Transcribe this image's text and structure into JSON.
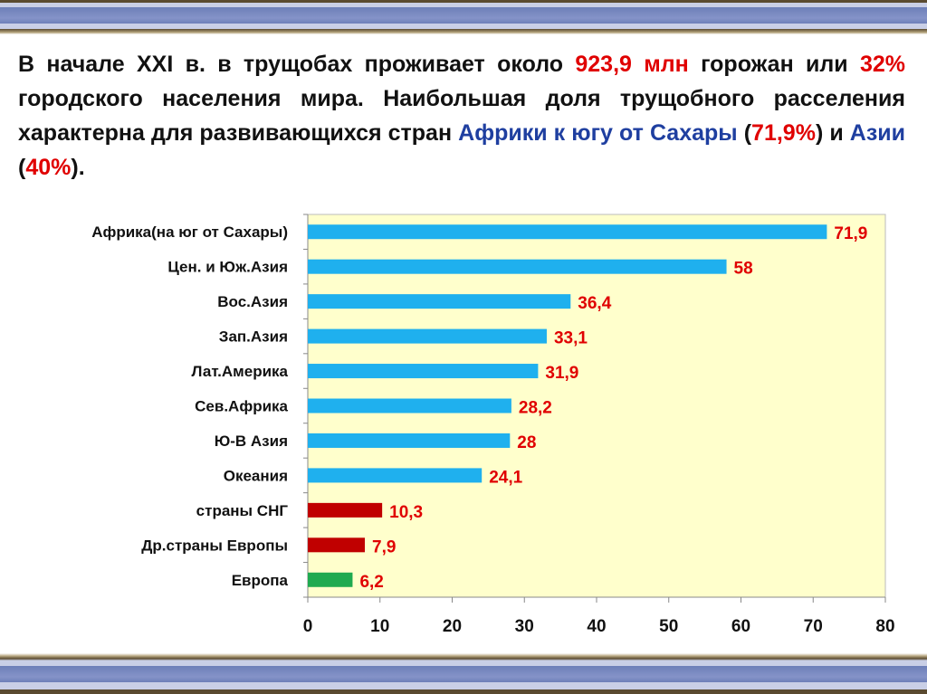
{
  "text": {
    "p1": "В начале XXI в. в трущобах проживает около ",
    "h1": "923,9 млн",
    "p2": " горожан или ",
    "h2": "32%",
    "p3": " городского населения мира.  Наибольшая доля трущобного расселения характерна для развивающихся стран ",
    "b1": "Африки к югу от Сахары",
    "p4": " (",
    "h3": "71,9%",
    "p5": ") и ",
    "b2": "Азии",
    "p6": " (",
    "h4": "40%",
    "p7": ")."
  },
  "chart_data": {
    "type": "bar",
    "orientation": "horizontal",
    "categories": [
      "Африка(на юг от Сахары)",
      "Цен. и Юж.Азия",
      "Вос.Азия",
      "Зап.Азия",
      "Лат.Америка",
      "Сев.Африка",
      "Ю-В Азия",
      "Океания",
      "страны СНГ",
      "Др.страны Европы",
      "Европа"
    ],
    "values": [
      71.9,
      58,
      36.4,
      33.1,
      31.9,
      28.2,
      28,
      24.1,
      10.3,
      7.9,
      6.2
    ],
    "labels": [
      "71,9",
      "58",
      "36,4",
      "33,1",
      "31,9",
      "28,2",
      "28",
      "24,1",
      "10,3",
      "7,9",
      "6,2"
    ],
    "colors": [
      "#1fb0ee",
      "#1fb0ee",
      "#1fb0ee",
      "#1fb0ee",
      "#1fb0ee",
      "#1fb0ee",
      "#1fb0ee",
      "#1fb0ee",
      "#c00000",
      "#c00000",
      "#1faa50"
    ],
    "xlim": [
      0,
      80
    ],
    "xticks": [
      "0",
      "10",
      "20",
      "30",
      "40",
      "50",
      "60",
      "70",
      "80"
    ],
    "plot_background": "#ffffcc",
    "grid": false,
    "label_color": "#e00000"
  }
}
